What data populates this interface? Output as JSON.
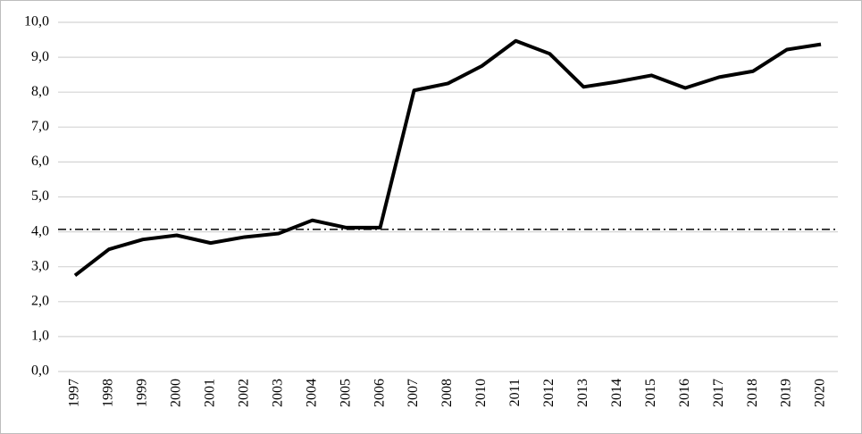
{
  "chart_data": {
    "type": "line",
    "categories": [
      "1997",
      "1998",
      "1999",
      "2000",
      "2001",
      "2002",
      "2003",
      "2004",
      "2005",
      "2006",
      "2007",
      "2008",
      "2010",
      "2011",
      "2012",
      "2013",
      "2014",
      "2015",
      "2016",
      "2017",
      "2018",
      "2019",
      "2020"
    ],
    "series": [
      {
        "color": "#000000",
        "values": [
          2.75,
          3.5,
          3.78,
          3.9,
          3.68,
          3.85,
          3.95,
          4.33,
          4.12,
          4.12,
          8.05,
          8.25,
          8.75,
          9.47,
          9.1,
          8.15,
          8.3,
          8.48,
          8.12,
          8.43,
          8.6,
          9.22,
          9.37
        ]
      }
    ],
    "reference_line": {
      "value": 4.07,
      "color": "#000000",
      "dash": "dashdot"
    },
    "ylim": [
      0,
      10
    ],
    "yticks": [
      {
        "value": 0,
        "label": "0,0"
      },
      {
        "value": 1,
        "label": "1,0"
      },
      {
        "value": 2,
        "label": "2,0"
      },
      {
        "value": 3,
        "label": "3,0"
      },
      {
        "value": 4,
        "label": "4,0"
      },
      {
        "value": 5,
        "label": "5,0"
      },
      {
        "value": 6,
        "label": "6,0"
      },
      {
        "value": 7,
        "label": "7,0"
      },
      {
        "value": 8,
        "label": "8,0"
      },
      {
        "value": 9,
        "label": "9,0"
      },
      {
        "value": 10,
        "label": "10,0"
      }
    ],
    "grid": true
  }
}
